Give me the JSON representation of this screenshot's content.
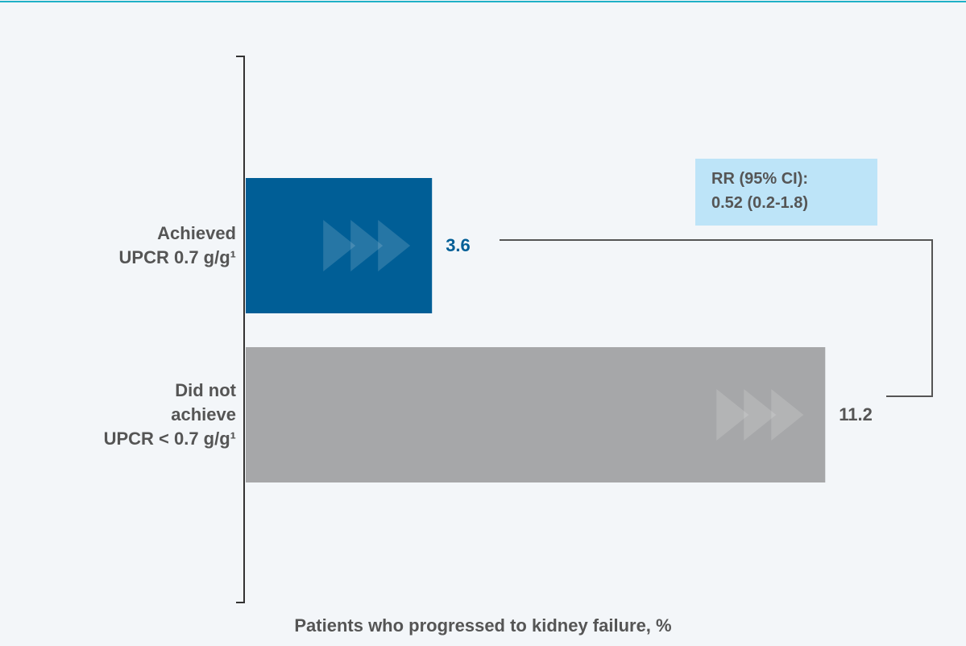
{
  "chart_data": {
    "type": "hbar",
    "x_label": "Patients who progressed to kidney failure, %",
    "categories": [
      "Achieved\nUPCR 0.7 g/g¹",
      "Did not\nachieve\nUPCR < 0.7 g/g¹"
    ],
    "values": [
      3.6,
      11.2
    ],
    "colors": [
      "#005e96",
      "#a6a7a9"
    ],
    "value_label_colors": [
      "#005e96",
      "#555555"
    ],
    "xlim": [
      0,
      13.5
    ],
    "annotation": "RR (95% CI):\n0.52 (0.2-1.8)"
  }
}
